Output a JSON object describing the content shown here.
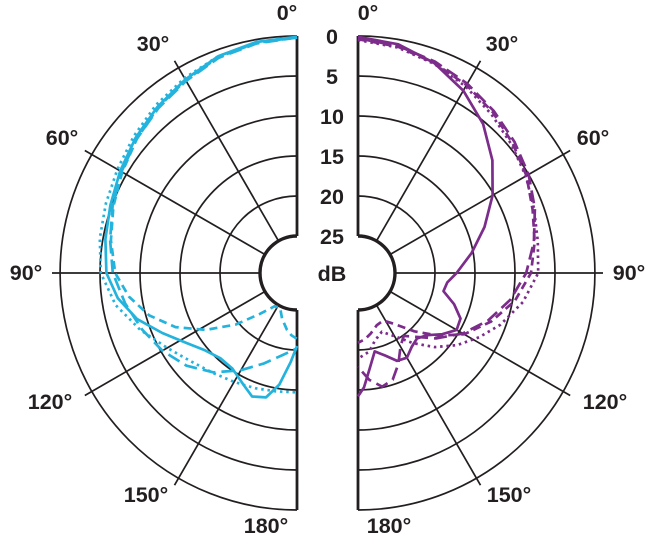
{
  "figure": {
    "description": "Two half-circle polar directivity patterns sharing a central dB attenuation scale",
    "background": "#ffffff"
  },
  "colors": {
    "left_trace": "#24b3dd",
    "right_trace": "#7c2c8a",
    "grid": "#231f20",
    "text": "#231f20",
    "background": "#ffffff"
  },
  "chart_data": {
    "type": "line",
    "subtype": "half-polar-directivity-pair",
    "angle_ticks_deg": [
      0,
      30,
      60,
      90,
      120,
      150,
      180
    ],
    "angle_labels": [
      "0°",
      "30°",
      "60°",
      "90°",
      "120°",
      "150°",
      "180°"
    ],
    "radial_axis": {
      "unit_label": "dB",
      "tick_labels": [
        "0",
        "5",
        "10",
        "15",
        "20",
        "25"
      ],
      "ticks_db": [
        0,
        5,
        10,
        15,
        20,
        25
      ],
      "range_db": [
        0,
        25
      ],
      "direction": "attenuation increases toward center",
      "grid": "on",
      "legend": "none"
    },
    "plots": [
      {
        "id": "left",
        "side": "left",
        "color": "#24b3dd",
        "series": [
          {
            "name": "solid",
            "style": "solid",
            "points": [
              [
                0,
                0.1
              ],
              [
                10,
                0.3
              ],
              [
                20,
                0.8
              ],
              [
                30,
                1.7
              ],
              [
                40,
                2.5
              ],
              [
                50,
                3.3
              ],
              [
                60,
                4.1
              ],
              [
                70,
                4.8
              ],
              [
                80,
                5.3
              ],
              [
                90,
                5.8
              ],
              [
                98,
                7.0
              ],
              [
                106,
                8.8
              ],
              [
                114,
                11.2
              ],
              [
                122,
                13.2
              ],
              [
                130,
                14.6
              ],
              [
                138,
                15.3
              ],
              [
                146,
                15.2
              ],
              [
                154,
                14.2
              ],
              [
                160,
                13.2
              ],
              [
                166,
                13.6
              ],
              [
                171,
                15.5
              ],
              [
                176,
                18.5
              ],
              [
                180,
                20.5
              ]
            ]
          },
          {
            "name": "long-dash",
            "style": "long-dash",
            "points": [
              [
                0,
                0.2
              ],
              [
                10,
                0.5
              ],
              [
                20,
                1.0
              ],
              [
                30,
                1.9
              ],
              [
                40,
                2.7
              ],
              [
                50,
                3.5
              ],
              [
                60,
                4.3
              ],
              [
                70,
                5.1
              ],
              [
                80,
                5.9
              ],
              [
                90,
                6.6
              ],
              [
                100,
                7.8
              ],
              [
                110,
                9.0
              ],
              [
                120,
                10.2
              ],
              [
                130,
                11.6
              ],
              [
                140,
                13.4
              ],
              [
                150,
                15.6
              ],
              [
                160,
                17.6
              ],
              [
                170,
                19.2
              ],
              [
                180,
                20.2
              ]
            ]
          },
          {
            "name": "short-dash",
            "style": "short-dash",
            "points": [
              [
                0,
                0.15
              ],
              [
                10,
                0.4
              ],
              [
                20,
                0.9
              ],
              [
                30,
                1.8
              ],
              [
                40,
                2.6
              ],
              [
                50,
                3.5
              ],
              [
                60,
                4.4
              ],
              [
                70,
                5.2
              ],
              [
                80,
                6.0
              ],
              [
                90,
                6.9
              ],
              [
                98,
                8.4
              ],
              [
                106,
                10.4
              ],
              [
                114,
                13.0
              ],
              [
                122,
                16.2
              ],
              [
                130,
                19.6
              ],
              [
                138,
                22.8
              ],
              [
                146,
                24.6
              ],
              [
                154,
                24.8
              ],
              [
                162,
                23.6
              ],
              [
                170,
                22.4
              ],
              [
                175,
                21.8
              ],
              [
                180,
                21.4
              ]
            ]
          },
          {
            "name": "dotted",
            "style": "dotted",
            "points": [
              [
                0,
                0.2
              ],
              [
                10,
                0.4
              ],
              [
                20,
                0.8
              ],
              [
                30,
                1.5
              ],
              [
                40,
                2.2
              ],
              [
                50,
                3.0
              ],
              [
                60,
                3.7
              ],
              [
                70,
                4.2
              ],
              [
                80,
                4.6
              ],
              [
                90,
                5.1
              ],
              [
                100,
                6.6
              ],
              [
                110,
                8.8
              ],
              [
                120,
                10.9
              ],
              [
                130,
                12.4
              ],
              [
                140,
                13.3
              ],
              [
                150,
                13.9
              ],
              [
                160,
                14.3
              ],
              [
                170,
                14.6
              ],
              [
                180,
                14.7
              ]
            ]
          }
        ]
      },
      {
        "id": "right",
        "side": "right",
        "color": "#7c2c8a",
        "series": [
          {
            "name": "solid",
            "style": "solid",
            "points": [
              [
                0,
                0.1
              ],
              [
                10,
                0.6
              ],
              [
                20,
                1.7
              ],
              [
                30,
                3.3
              ],
              [
                40,
                5.3
              ],
              [
                50,
                7.7
              ],
              [
                60,
                10.2
              ],
              [
                70,
                12.8
              ],
              [
                80,
                15.2
              ],
              [
                90,
                17.3
              ],
              [
                96,
                18.4
              ],
              [
                102,
                18.7
              ],
              [
                108,
                17.0
              ],
              [
                114,
                15.6
              ],
              [
                120,
                15.4
              ],
              [
                126,
                16.6
              ],
              [
                132,
                18.0
              ],
              [
                138,
                18.6
              ],
              [
                144,
                18.2
              ],
              [
                150,
                17.4
              ],
              [
                156,
                17.6
              ],
              [
                162,
                18.8
              ],
              [
                168,
                19.6
              ],
              [
                173,
                17.6
              ],
              [
                177,
                15.3
              ],
              [
                180,
                14.2
              ]
            ]
          },
          {
            "name": "long-dash",
            "style": "long-dash",
            "points": [
              [
                0,
                0.3
              ],
              [
                10,
                0.8
              ],
              [
                20,
                1.5
              ],
              [
                30,
                2.3
              ],
              [
                40,
                3.2
              ],
              [
                50,
                4.1
              ],
              [
                60,
                5.0
              ],
              [
                70,
                6.1
              ],
              [
                80,
                7.3
              ],
              [
                90,
                8.6
              ],
              [
                100,
                10.3
              ],
              [
                110,
                12.3
              ],
              [
                120,
                14.5
              ],
              [
                130,
                16.9
              ],
              [
                138,
                18.9
              ],
              [
                144,
                19.9
              ],
              [
                150,
                19.0
              ],
              [
                156,
                17.2
              ],
              [
                162,
                15.6
              ],
              [
                168,
                15.1
              ],
              [
                174,
                16.2
              ],
              [
                180,
                17.9
              ]
            ]
          },
          {
            "name": "short-dash",
            "style": "short-dash",
            "points": [
              [
                0,
                0.4
              ],
              [
                10,
                0.9
              ],
              [
                20,
                1.7
              ],
              [
                30,
                2.5
              ],
              [
                40,
                3.4
              ],
              [
                50,
                4.4
              ],
              [
                60,
                5.3
              ],
              [
                70,
                6.4
              ],
              [
                80,
                7.2
              ],
              [
                90,
                8.0
              ],
              [
                100,
                9.7
              ],
              [
                110,
                11.9
              ],
              [
                120,
                14.3
              ],
              [
                128,
                16.9
              ],
              [
                136,
                19.5
              ],
              [
                144,
                21.7
              ],
              [
                152,
                22.9
              ],
              [
                160,
                22.7
              ],
              [
                168,
                21.9
              ],
              [
                174,
                21.3
              ],
              [
                180,
                20.9
              ]
            ]
          },
          {
            "name": "dotted",
            "style": "dotted",
            "points": [
              [
                0,
                0.5
              ],
              [
                10,
                1.0
              ],
              [
                20,
                1.8
              ],
              [
                30,
                2.7
              ],
              [
                40,
                3.7
              ],
              [
                50,
                4.6
              ],
              [
                60,
                5.4
              ],
              [
                70,
                6.2
              ],
              [
                80,
                6.8
              ],
              [
                90,
                7.1
              ],
              [
                100,
                8.7
              ],
              [
                110,
                10.7
              ],
              [
                118,
                12.5
              ],
              [
                126,
                14.3
              ],
              [
                134,
                16.3
              ],
              [
                142,
                18.5
              ],
              [
                150,
                20.5
              ],
              [
                158,
                21.7
              ],
              [
                166,
                20.9
              ],
              [
                172,
                19.7
              ],
              [
                180,
                18.9
              ]
            ]
          }
        ]
      }
    ]
  }
}
